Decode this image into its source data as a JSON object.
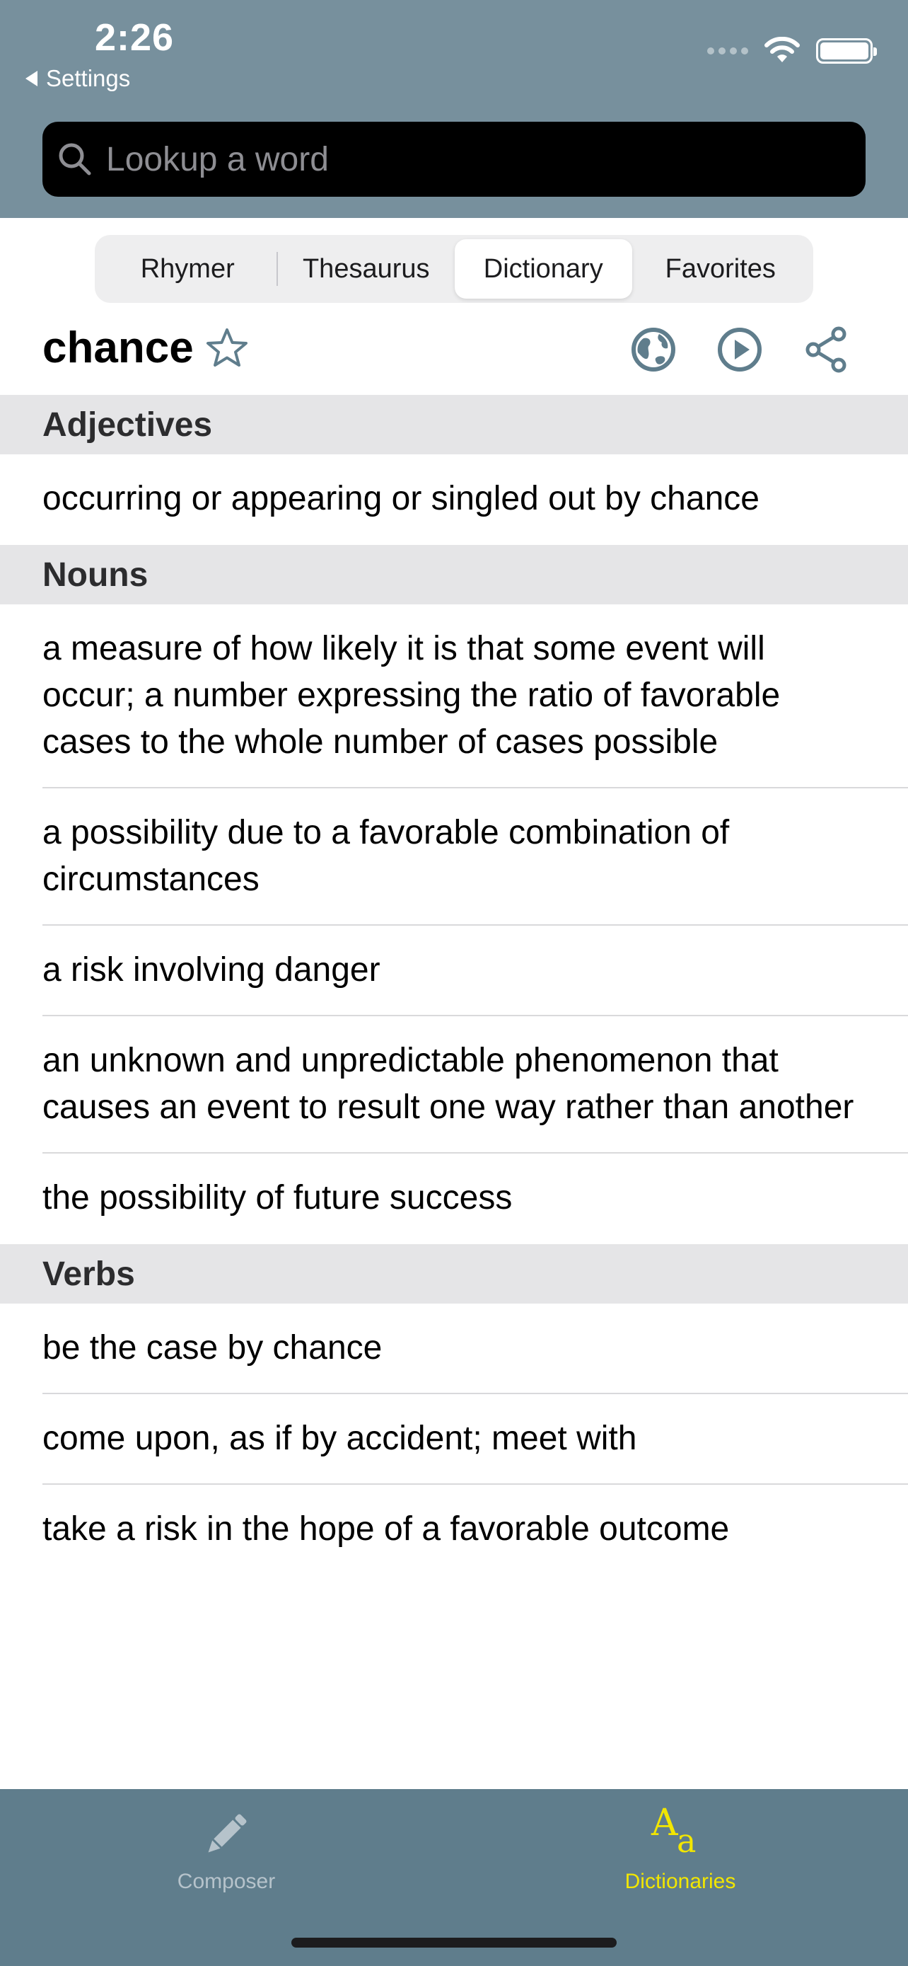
{
  "status_bar": {
    "time": "2:26",
    "back_label": "Settings"
  },
  "search": {
    "placeholder": "Lookup a word",
    "value": ""
  },
  "segments": [
    {
      "label": "Rhymer",
      "active": false
    },
    {
      "label": "Thesaurus",
      "active": false
    },
    {
      "label": "Dictionary",
      "active": true
    },
    {
      "label": "Favorites",
      "active": false
    }
  ],
  "entry": {
    "word": "chance"
  },
  "sections": {
    "adjectives": {
      "title": "Adjectives",
      "items": [
        "occurring or appearing or singled out by chance"
      ]
    },
    "nouns": {
      "title": "Nouns",
      "items": [
        "a measure of how likely it is that some event will occur; a number expressing the ratio of favorable cases to the whole number of cases possible",
        "a possibility due to a favorable combination of circumstances",
        "a risk involving danger",
        "an unknown and unpredictable phenomenon that causes an event to result one way rather than another",
        "the possibility of future success"
      ]
    },
    "verbs": {
      "title": "Verbs",
      "items": [
        "be the case by chance",
        "come upon, as if by accident; meet with",
        "take a risk in the hope of a favorable outcome"
      ]
    }
  },
  "tabbar": {
    "composer_label": "Composer",
    "dictionaries_label": "Dictionaries",
    "dictionaries_icon_big": "A",
    "dictionaries_icon_small": "a"
  },
  "colors": {
    "header_bg": "#77909d",
    "tabbar_bg": "#5f7d8c",
    "active_tab": "#f2e600",
    "icon_accent": "#5f7d8c"
  }
}
